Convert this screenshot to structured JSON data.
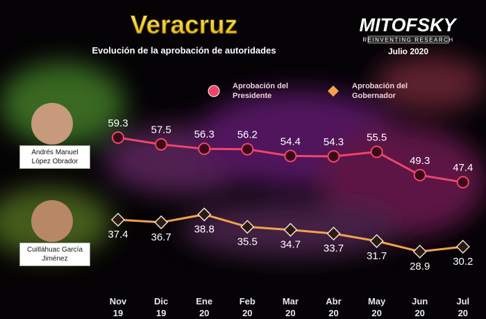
{
  "chart_data": {
    "type": "line",
    "title": "Veracruz",
    "subtitle": "Evolución de la aprobación de autoridades",
    "logo": {
      "name": "MITOFSKY",
      "tagline": "REINVENTING RESEARCH",
      "date": "Julio 2020"
    },
    "people": [
      "Andrés Manuel López Obrador",
      "Cuitláhuac García Jiménez"
    ],
    "legend": "top",
    "categories": [
      "Nov 19",
      "Dic 19",
      "Ene 20",
      "Feb 20",
      "Mar 20",
      "Abr 20",
      "May 20",
      "Jun 20",
      "Jul 20"
    ],
    "series": [
      {
        "name": "Aprobación del Presidente",
        "color": "#f0456a",
        "marker": "circle",
        "values": [
          59.3,
          57.5,
          56.3,
          56.2,
          54.4,
          54.3,
          55.5,
          49.3,
          47.4
        ]
      },
      {
        "name": "Aprobación del Gobernador",
        "color": "#f5a24a",
        "marker": "diamond",
        "values": [
          37.4,
          36.7,
          38.8,
          35.5,
          34.7,
          33.7,
          31.7,
          28.9,
          30.2
        ]
      }
    ]
  }
}
